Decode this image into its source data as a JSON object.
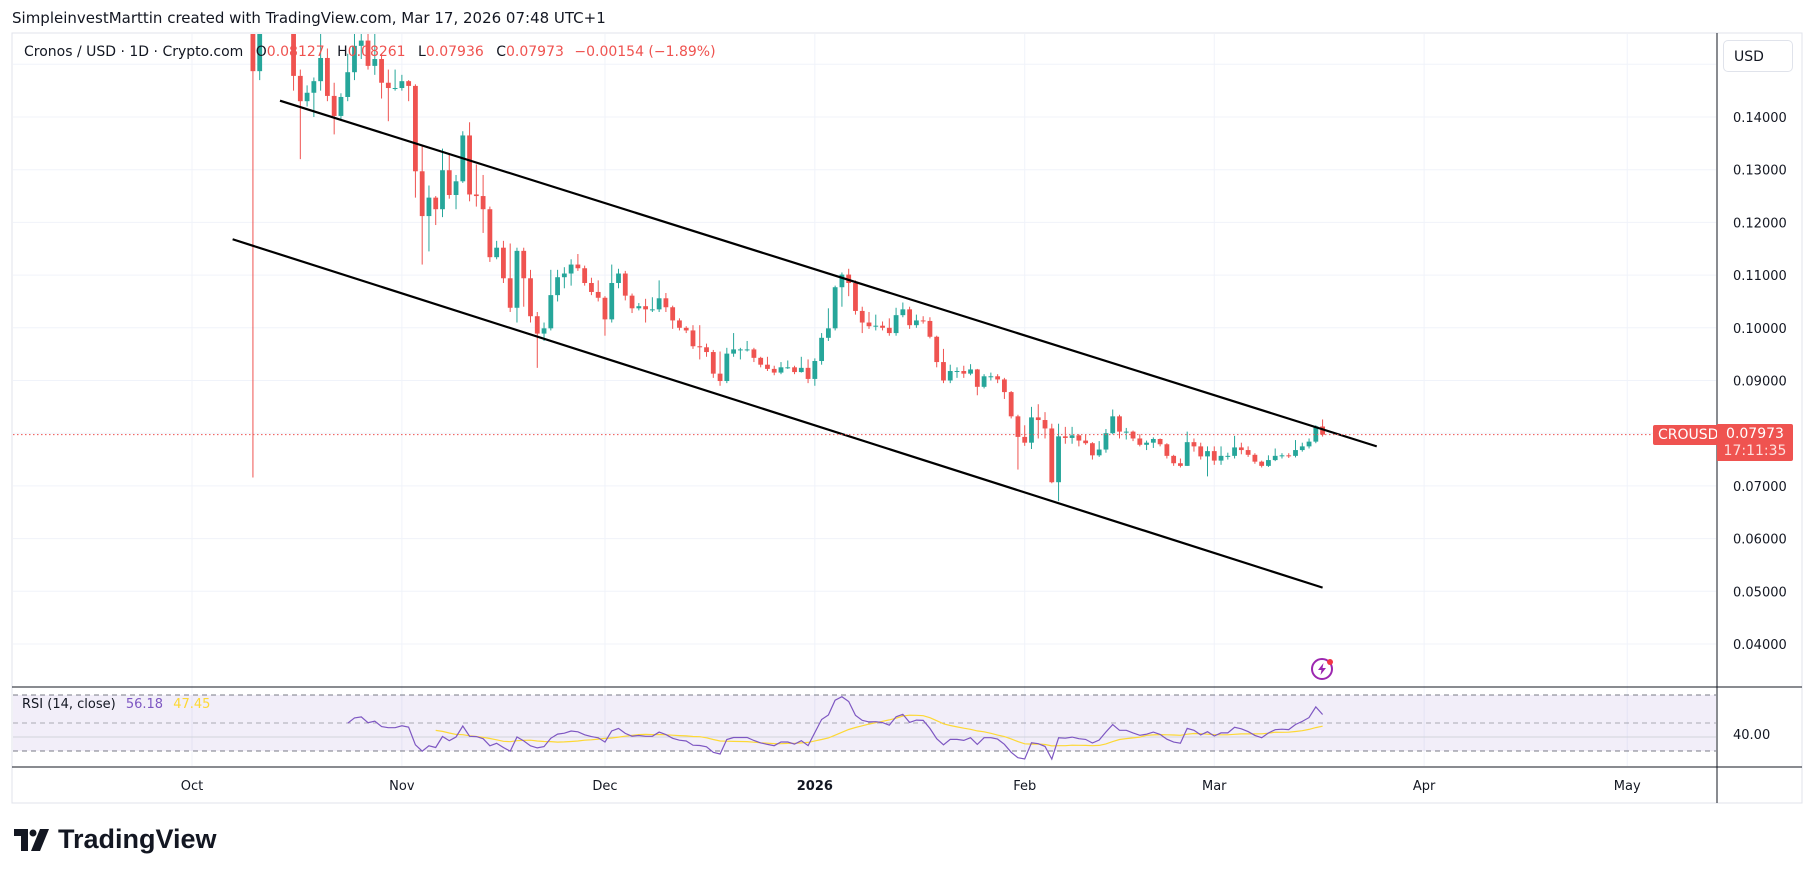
{
  "attribution": "SimpleinvestMarttin created with TradingView.com, Mar 17, 2026 07:48 UTC+1",
  "legend": {
    "symbol": "Cronos / USD · 1D · Crypto.com",
    "o_label": "O",
    "o": "0.08127",
    "h_label": "H",
    "h": "0.08261",
    "l_label": "L",
    "l": "0.07936",
    "c_label": "C",
    "c": "0.07973",
    "change": "−0.00154 (−1.89%)"
  },
  "currency_button": "USD",
  "price_tag": {
    "symbol": "CROUSD",
    "price": "0.07973",
    "countdown": "17:11:35"
  },
  "rsi_legend": {
    "title": "RSI (14, close)",
    "rsi": "56.18",
    "ma": "47.45",
    "axis_label": "40.00"
  },
  "logo": {
    "text": "TradingView"
  },
  "colors": {
    "up": "#26a69a",
    "down": "#ef5350",
    "rsi": "#7e57c2",
    "rsi_ma": "#fdd835",
    "trendline": "#000000"
  },
  "chart_data": {
    "type": "candlestick",
    "title": "Cronos / USD · 1D · Crypto.com",
    "interval": "1D",
    "start_date": "2025-10-10",
    "ohlc": [
      [
        0.175,
        0.18,
        0.0716,
        0.1487
      ],
      [
        0.1487,
        0.16,
        0.147,
        0.158
      ],
      [
        0.158,
        0.165,
        0.156,
        0.162
      ],
      [
        0.162,
        0.168,
        0.16,
        0.165
      ],
      [
        0.165,
        0.166,
        0.159,
        0.16
      ],
      [
        0.16,
        0.162,
        0.156,
        0.158
      ],
      [
        0.158,
        0.159,
        0.145,
        0.1478
      ],
      [
        0.1478,
        0.149,
        0.132,
        0.143
      ],
      [
        0.143,
        0.146,
        0.142,
        0.1446
      ],
      [
        0.1446,
        0.1475,
        0.14,
        0.1468
      ],
      [
        0.1468,
        0.156,
        0.145,
        0.1512
      ],
      [
        0.1512,
        0.153,
        0.143,
        0.144
      ],
      [
        0.144,
        0.1465,
        0.1367,
        0.1402
      ],
      [
        0.1402,
        0.1445,
        0.1395,
        0.1438
      ],
      [
        0.1438,
        0.152,
        0.143,
        0.1485
      ],
      [
        0.1485,
        0.156,
        0.147,
        0.1535
      ],
      [
        0.1535,
        0.1565,
        0.151,
        0.1545
      ],
      [
        0.1545,
        0.156,
        0.149,
        0.1497
      ],
      [
        0.1497,
        0.156,
        0.148,
        0.151
      ],
      [
        0.151,
        0.152,
        0.1435,
        0.1465
      ],
      [
        0.1465,
        0.149,
        0.1392,
        0.1455
      ],
      [
        0.1455,
        0.149,
        0.145,
        0.1455
      ],
      [
        0.1455,
        0.148,
        0.145,
        0.1468
      ],
      [
        0.1468,
        0.147,
        0.143,
        0.1459
      ],
      [
        0.1459,
        0.1462,
        0.1247,
        0.1297
      ],
      [
        0.1297,
        0.1345,
        0.112,
        0.1212
      ],
      [
        0.1212,
        0.127,
        0.1145,
        0.1247
      ],
      [
        0.1247,
        0.125,
        0.1195,
        0.1225
      ],
      [
        0.1225,
        0.134,
        0.121,
        0.1299
      ],
      [
        0.1299,
        0.133,
        0.1245,
        0.1252
      ],
      [
        0.1252,
        0.129,
        0.1225,
        0.1278
      ],
      [
        0.1278,
        0.1373,
        0.1275,
        0.1365
      ],
      [
        0.1365,
        0.139,
        0.124,
        0.1253
      ],
      [
        0.1253,
        0.131,
        0.123,
        0.125
      ],
      [
        0.125,
        0.129,
        0.118,
        0.1225
      ],
      [
        0.1225,
        0.123,
        0.1125,
        0.1134
      ],
      [
        0.1134,
        0.1165,
        0.113,
        0.1152
      ],
      [
        0.1152,
        0.1165,
        0.1085,
        0.1094
      ],
      [
        0.1094,
        0.116,
        0.103,
        0.1038
      ],
      [
        0.1038,
        0.1152,
        0.101,
        0.1146
      ],
      [
        0.1146,
        0.1152,
        0.104,
        0.1094
      ],
      [
        0.1094,
        0.111,
        0.101,
        0.1022
      ],
      [
        0.1022,
        0.103,
        0.0924,
        0.0989
      ],
      [
        0.0989,
        0.101,
        0.0975,
        0.0999
      ],
      [
        0.0999,
        0.111,
        0.0995,
        0.1062
      ],
      [
        0.1062,
        0.111,
        0.105,
        0.1096
      ],
      [
        0.1096,
        0.1115,
        0.1075,
        0.1103
      ],
      [
        0.1103,
        0.113,
        0.108,
        0.112
      ],
      [
        0.112,
        0.114,
        0.1108,
        0.1113
      ],
      [
        0.1113,
        0.1118,
        0.108,
        0.1085
      ],
      [
        0.1085,
        0.1095,
        0.1062,
        0.1068
      ],
      [
        0.1068,
        0.109,
        0.105,
        0.1057
      ],
      [
        0.1057,
        0.106,
        0.0985,
        0.1016
      ],
      [
        0.1016,
        0.112,
        0.101,
        0.1085
      ],
      [
        0.1085,
        0.1112,
        0.1075,
        0.1103
      ],
      [
        0.1103,
        0.1108,
        0.1052,
        0.1061
      ],
      [
        0.1061,
        0.1065,
        0.1028,
        0.1037
      ],
      [
        0.1037,
        0.1047,
        0.1033,
        0.1041
      ],
      [
        0.1041,
        0.1055,
        0.101,
        0.1035
      ],
      [
        0.1035,
        0.1058,
        0.103,
        0.1035
      ],
      [
        0.1035,
        0.109,
        0.103,
        0.1056
      ],
      [
        0.1056,
        0.1066,
        0.103,
        0.1039
      ],
      [
        0.1039,
        0.1042,
        0.0998,
        0.1014
      ],
      [
        0.1014,
        0.1018,
        0.0995,
        0.1
      ],
      [
        0.1,
        0.1003,
        0.099,
        0.0995
      ],
      [
        0.0995,
        0.1005,
        0.096,
        0.0965
      ],
      [
        0.0965,
        0.1005,
        0.094,
        0.0963
      ],
      [
        0.0963,
        0.097,
        0.0945,
        0.0954
      ],
      [
        0.0954,
        0.0958,
        0.0905,
        0.0913
      ],
      [
        0.0913,
        0.0955,
        0.089,
        0.0899
      ],
      [
        0.0899,
        0.0962,
        0.0895,
        0.0951
      ],
      [
        0.0951,
        0.099,
        0.0945,
        0.0959
      ],
      [
        0.0959,
        0.0962,
        0.094,
        0.0959
      ],
      [
        0.0959,
        0.0975,
        0.0955,
        0.0959
      ],
      [
        0.0959,
        0.0962,
        0.0935,
        0.0943
      ],
      [
        0.0943,
        0.0945,
        0.0925,
        0.093
      ],
      [
        0.093,
        0.0945,
        0.0918,
        0.0922
      ],
      [
        0.0922,
        0.0928,
        0.091,
        0.0915
      ],
      [
        0.0915,
        0.0935,
        0.0912,
        0.0925
      ],
      [
        0.0925,
        0.0938,
        0.0922,
        0.0925
      ],
      [
        0.0925,
        0.0928,
        0.0912,
        0.0916
      ],
      [
        0.0916,
        0.0945,
        0.0915,
        0.0924
      ],
      [
        0.0924,
        0.094,
        0.0895,
        0.0903
      ],
      [
        0.0903,
        0.0942,
        0.089,
        0.0937
      ],
      [
        0.0937,
        0.099,
        0.093,
        0.0981
      ],
      [
        0.0981,
        0.1037,
        0.0975,
        0.0999
      ],
      [
        0.0999,
        0.108,
        0.0995,
        0.1077
      ],
      [
        0.1077,
        0.1105,
        0.104,
        0.1101
      ],
      [
        0.1101,
        0.1112,
        0.106,
        0.1085
      ],
      [
        0.1085,
        0.109,
        0.1025,
        0.1032
      ],
      [
        0.1032,
        0.104,
        0.099,
        0.101
      ],
      [
        0.101,
        0.103,
        0.0998,
        0.1003
      ],
      [
        0.1003,
        0.1025,
        0.0995,
        0.1004
      ],
      [
        0.1004,
        0.1012,
        0.0995,
        0.1
      ],
      [
        0.1,
        0.1018,
        0.0985,
        0.099
      ],
      [
        0.099,
        0.1038,
        0.0985,
        0.1024
      ],
      [
        0.1024,
        0.1048,
        0.102,
        0.1035
      ],
      [
        0.1035,
        0.104,
        0.0998,
        0.1005
      ],
      [
        0.1005,
        0.1025,
        0.1,
        0.1014
      ],
      [
        0.1014,
        0.1022,
        0.1008,
        0.1013
      ],
      [
        0.1013,
        0.102,
        0.098,
        0.0983
      ],
      [
        0.0983,
        0.0985,
        0.0925,
        0.0935
      ],
      [
        0.0935,
        0.096,
        0.0895,
        0.09
      ],
      [
        0.09,
        0.093,
        0.0895,
        0.0918
      ],
      [
        0.0918,
        0.0925,
        0.0905,
        0.0918
      ],
      [
        0.0918,
        0.0928,
        0.0905,
        0.0913
      ],
      [
        0.0913,
        0.0931,
        0.091,
        0.0921
      ],
      [
        0.0921,
        0.0922,
        0.0872,
        0.0888
      ],
      [
        0.0888,
        0.0912,
        0.0885,
        0.0908
      ],
      [
        0.0908,
        0.0915,
        0.09,
        0.0908
      ],
      [
        0.0908,
        0.0912,
        0.0895,
        0.0902
      ],
      [
        0.0902,
        0.0905,
        0.0865,
        0.0878
      ],
      [
        0.0878,
        0.088,
        0.0828,
        0.0832
      ],
      [
        0.0832,
        0.0835,
        0.0731,
        0.0793
      ],
      [
        0.0793,
        0.0815,
        0.0776,
        0.0782
      ],
      [
        0.0782,
        0.085,
        0.077,
        0.083
      ],
      [
        0.083,
        0.0855,
        0.079,
        0.0825
      ],
      [
        0.0825,
        0.084,
        0.079,
        0.0809
      ],
      [
        0.0809,
        0.0818,
        0.0705,
        0.0707
      ],
      [
        0.0707,
        0.0818,
        0.0671,
        0.0794
      ],
      [
        0.0794,
        0.0812,
        0.078,
        0.0791
      ],
      [
        0.0791,
        0.0812,
        0.078,
        0.0796
      ],
      [
        0.0796,
        0.0798,
        0.0775,
        0.0786
      ],
      [
        0.0786,
        0.0797,
        0.0778,
        0.0781
      ],
      [
        0.0781,
        0.0783,
        0.075,
        0.0758
      ],
      [
        0.0758,
        0.0785,
        0.0755,
        0.0769
      ],
      [
        0.0769,
        0.0808,
        0.0763,
        0.08
      ],
      [
        0.08,
        0.0845,
        0.0798,
        0.0832
      ],
      [
        0.0832,
        0.0835,
        0.079,
        0.0803
      ],
      [
        0.0803,
        0.081,
        0.0788,
        0.0803
      ],
      [
        0.0803,
        0.0805,
        0.0785,
        0.079
      ],
      [
        0.079,
        0.0798,
        0.0775,
        0.0778
      ],
      [
        0.0778,
        0.0786,
        0.0768,
        0.0782
      ],
      [
        0.0782,
        0.0792,
        0.0772,
        0.0789
      ],
      [
        0.0789,
        0.079,
        0.0775,
        0.0779
      ],
      [
        0.0779,
        0.0781,
        0.0752,
        0.0757
      ],
      [
        0.0757,
        0.0759,
        0.0738,
        0.0743
      ],
      [
        0.0743,
        0.0752,
        0.0735,
        0.0738
      ],
      [
        0.0738,
        0.0803,
        0.0738,
        0.0783
      ],
      [
        0.0783,
        0.079,
        0.0765,
        0.0775
      ],
      [
        0.0775,
        0.0782,
        0.075,
        0.0756
      ],
      [
        0.0756,
        0.0775,
        0.0718,
        0.0766
      ],
      [
        0.0766,
        0.0775,
        0.074,
        0.0748
      ],
      [
        0.0748,
        0.0775,
        0.074,
        0.0757
      ],
      [
        0.0757,
        0.0763,
        0.075,
        0.0757
      ],
      [
        0.0757,
        0.0795,
        0.0752,
        0.0773
      ],
      [
        0.0773,
        0.0782,
        0.076,
        0.0768
      ],
      [
        0.0768,
        0.0775,
        0.0755,
        0.0759
      ],
      [
        0.0759,
        0.0762,
        0.0742,
        0.0746
      ],
      [
        0.0746,
        0.0748,
        0.0735,
        0.0738
      ],
      [
        0.0738,
        0.0758,
        0.0736,
        0.0749
      ],
      [
        0.0749,
        0.0771,
        0.0747,
        0.0757
      ],
      [
        0.0757,
        0.0762,
        0.0752,
        0.0758
      ],
      [
        0.0758,
        0.0762,
        0.0753,
        0.0757
      ],
      [
        0.0757,
        0.0787,
        0.0754,
        0.0768
      ],
      [
        0.0768,
        0.0782,
        0.0765,
        0.0775
      ],
      [
        0.0775,
        0.079,
        0.0771,
        0.0784
      ],
      [
        0.0784,
        0.0815,
        0.0781,
        0.0813
      ],
      [
        0.08127,
        0.08261,
        0.07936,
        0.07973
      ]
    ],
    "last_price": 0.07973,
    "y_ticks": [
      "0.14000",
      "0.13000",
      "0.12000",
      "0.11000",
      "0.10000",
      "0.09000",
      "0.08000",
      "0.07000",
      "0.06000",
      "0.05000",
      "0.04000"
    ],
    "y_tick_values": [
      0.14,
      0.13,
      0.12,
      0.11,
      0.1,
      0.09,
      0.08,
      0.07,
      0.06,
      0.05,
      0.04
    ],
    "hidden_y_labels": [
      "0.08000"
    ],
    "x_ticks": [
      {
        "label": "Oct",
        "date": "2025-10-01",
        "bold": false
      },
      {
        "label": "Nov",
        "date": "2025-11-01",
        "bold": false
      },
      {
        "label": "Dec",
        "date": "2025-12-01",
        "bold": false
      },
      {
        "label": "2026",
        "date": "2026-01-01",
        "bold": true
      },
      {
        "label": "Feb",
        "date": "2026-02-01",
        "bold": false
      },
      {
        "label": "Mar",
        "date": "2026-03-01",
        "bold": false
      },
      {
        "label": "Apr",
        "date": "2026-04-01",
        "bold": false
      },
      {
        "label": "May",
        "date": "2026-05-01",
        "bold": false
      }
    ],
    "trendlines": [
      {
        "name": "channel-upper",
        "from": {
          "date": "2025-10-14",
          "price": 0.1431
        },
        "to": {
          "date": "2026-03-25",
          "price": 0.0775
        }
      },
      {
        "name": "channel-lower",
        "from": {
          "date": "2025-10-07",
          "price": 0.1168
        },
        "to": {
          "date": "2026-03-17",
          "price": 0.0507
        }
      }
    ],
    "rsi": {
      "period": 14,
      "ma_period": 14,
      "levels": [
        70,
        50,
        30
      ],
      "last_rsi": 56.18,
      "last_ma": 47.45
    }
  }
}
